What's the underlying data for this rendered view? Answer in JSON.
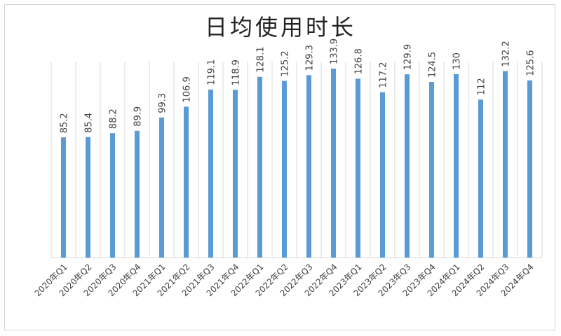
{
  "chart_data": {
    "type": "bar",
    "title": "日均使用时长",
    "xlabel": "",
    "ylabel": "",
    "ylim": [
      0,
      150
    ],
    "grid": "vertical category lines",
    "legend": "none",
    "bar_color": "#5b9bd5",
    "grid_color": "#d9d9d9",
    "categories": [
      "2020年Q1",
      "2020年Q2",
      "2020年Q3",
      "2020年Q4",
      "2021年Q1",
      "2021年Q2",
      "2021年Q3",
      "2021年Q4",
      "2022年Q1",
      "2022年Q2",
      "2022年Q3",
      "2022年Q4",
      "2023年Q1",
      "2023年Q2",
      "2023年Q3",
      "2023年Q4",
      "2024年Q1",
      "2024年Q2",
      "2024年Q3",
      "2024年Q4"
    ],
    "values": [
      85.2,
      85.4,
      88.2,
      89.9,
      99.3,
      106.9,
      119.1,
      118.9,
      128.1,
      125.2,
      129.3,
      133.9,
      126.8,
      117.2,
      129.9,
      124.5,
      130,
      112,
      132.2,
      125.6
    ],
    "data_labels": [
      "85.2",
      "85.4",
      "88.2",
      "89.9",
      "99.3",
      "106.9",
      "119.1",
      "118.9",
      "128.1",
      "125.2",
      "129.3",
      "133.9",
      "126.8",
      "117.2",
      "129.9",
      "124.5",
      "130",
      "112",
      "132.2",
      "125.6"
    ]
  }
}
